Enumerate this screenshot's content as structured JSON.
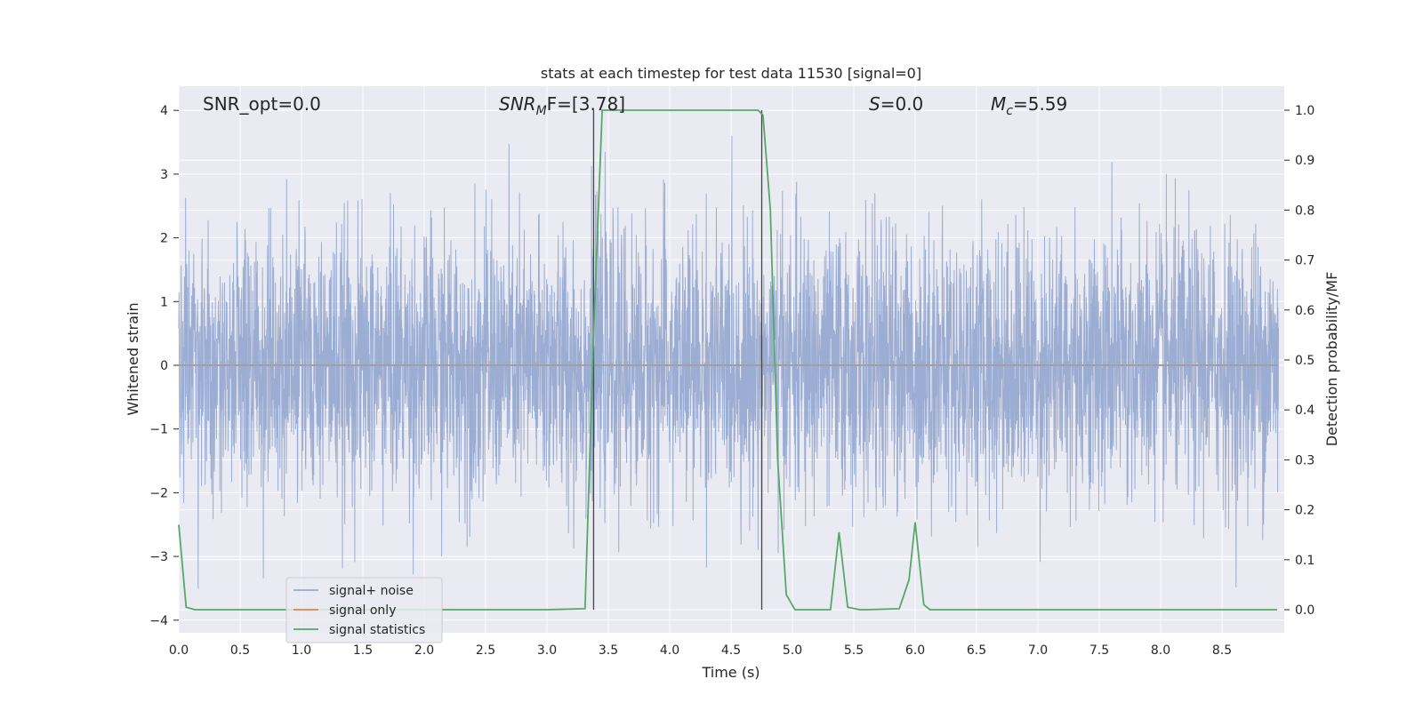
{
  "chart_data": {
    "type": "line",
    "title": "stats at each timestep for test data 11530 [signal=0]",
    "xlabel": "Time (s)",
    "ylabel_left": "Whitened strain",
    "ylabel_right": "Detection probability/MF",
    "xlim": [
      0.0,
      9.0
    ],
    "ylim_left": [
      -4.2,
      4.4
    ],
    "ylim_right": [
      -0.05,
      1.05
    ],
    "x_ticks": [
      "0.0",
      "0.5",
      "1.0",
      "1.5",
      "2.0",
      "2.5",
      "3.0",
      "3.5",
      "4.0",
      "4.5",
      "5.0",
      "5.5",
      "6.0",
      "6.5",
      "7.0",
      "7.5",
      "8.0",
      "8.5"
    ],
    "y_ticks_left": [
      "4",
      "3",
      "2",
      "1",
      "0",
      "−1",
      "−2",
      "−3",
      "−4"
    ],
    "y_ticks_right": [
      "1.0",
      "0.9",
      "0.8",
      "0.7",
      "0.6",
      "0.5",
      "0.4",
      "0.3",
      "0.2",
      "0.1",
      "0.0"
    ],
    "grid": true,
    "legend_position": "lower-left",
    "annotations": {
      "snr_opt": "SNR_opt=0.0",
      "snr_mf_main": "SNR",
      "snr_mf_sub": "M",
      "snr_mf_rest": "F=[3.78]",
      "s_main": "S",
      "s_rest": "=0.0",
      "mc_main": "M",
      "mc_sub": "c",
      "mc_rest": "=5.59"
    },
    "vertical_lines": [
      3.38,
      4.75
    ],
    "series": [
      {
        "name": "signal+ noise",
        "color": "#98aad1",
        "description_values": "whitened strain noise, approx. gaussian, peaks around ±3.5"
      },
      {
        "name": "signal only",
        "color": "#dd8452",
        "x": [
          0.0,
          8.95
        ],
        "y": [
          0.0,
          0.0
        ]
      },
      {
        "name": "signal statistics",
        "color": "#55a868",
        "x": [
          0.0,
          0.06,
          0.13,
          0.2,
          1.0,
          2.0,
          3.0,
          3.31,
          3.38,
          3.45,
          3.55,
          4.0,
          4.5,
          4.72,
          4.76,
          4.82,
          4.88,
          4.95,
          5.02,
          5.2,
          5.31,
          5.38,
          5.45,
          5.55,
          5.6,
          5.87,
          5.95,
          6.0,
          6.07,
          6.12,
          6.5,
          7.0,
          8.0,
          8.95
        ],
        "y": [
          0.17,
          0.005,
          0.0,
          0.0,
          0.0,
          0.0,
          0.0,
          0.002,
          0.55,
          1.0,
          1.0,
          1.0,
          1.0,
          1.0,
          0.99,
          0.8,
          0.3,
          0.03,
          0.0,
          0.0,
          0.0,
          0.155,
          0.005,
          0.0,
          0.0,
          0.002,
          0.06,
          0.175,
          0.01,
          0.0,
          0.0,
          0.0,
          0.0,
          0.0
        ]
      }
    ]
  }
}
